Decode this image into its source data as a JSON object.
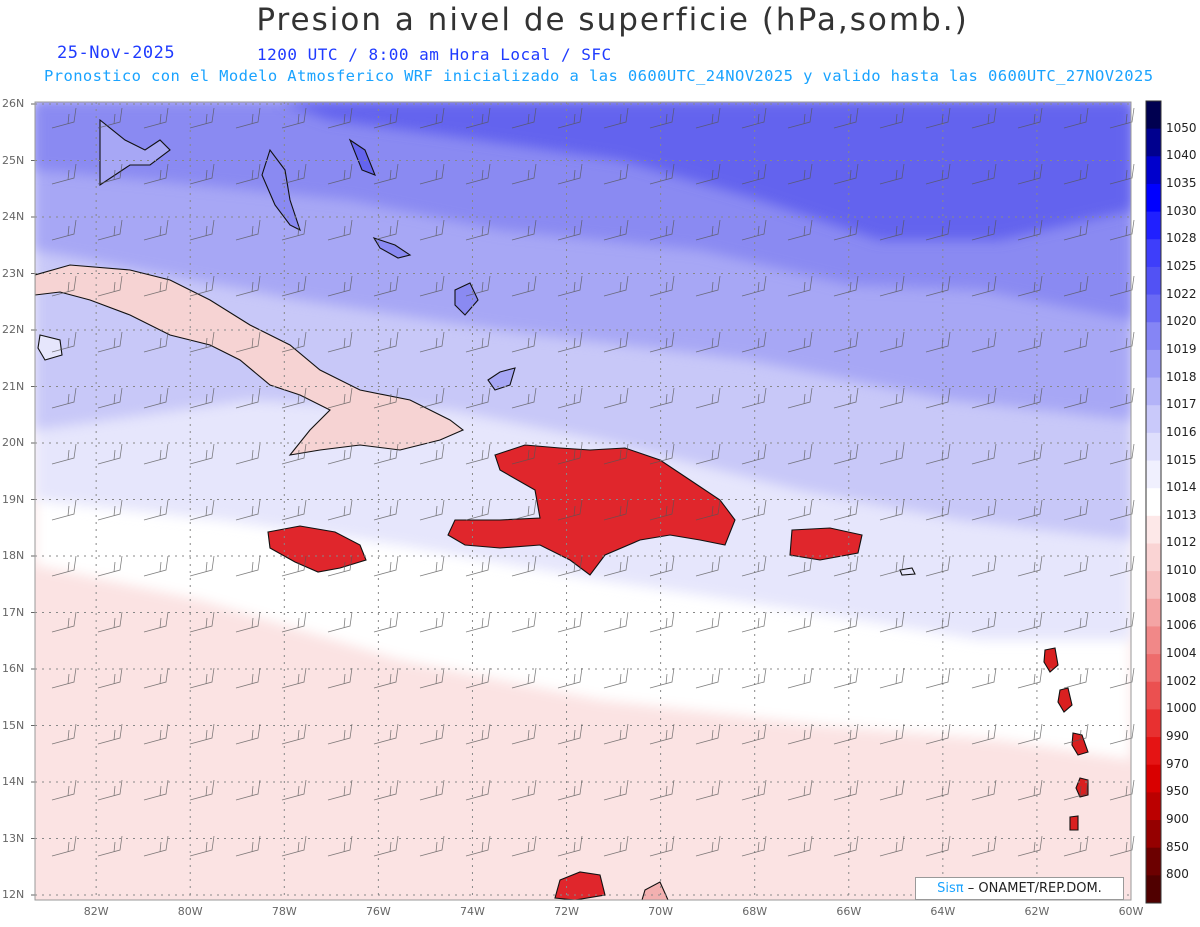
{
  "header": {
    "title": "Presion a nivel de superficie (hPa,somb.)",
    "date": "25-Nov-2025",
    "time_line": "1200 UTC / 8:00 am Hora Local / SFC",
    "forecast_line": "Pronostico con el Modelo Atmosferico WRF inicializado a las 0600UTC_24NOV2025 y valido hasta las  0600UTC_27NOV2025"
  },
  "axes": {
    "lat_labels": [
      "26N",
      "25N",
      "24N",
      "23N",
      "22N",
      "21N",
      "20N",
      "19N",
      "18N",
      "17N",
      "16N",
      "15N",
      "14N",
      "13N",
      "12N"
    ],
    "lon_labels": [
      "82W",
      "80W",
      "78W",
      "76W",
      "74W",
      "72W",
      "70W",
      "68W",
      "66W",
      "64W",
      "62W",
      "60W"
    ],
    "lat_range": [
      12,
      26
    ],
    "lon_range": [
      -83.3,
      -60
    ]
  },
  "colorbar": {
    "levels": [
      "1050",
      "1040",
      "1035",
      "1030",
      "1028",
      "1025",
      "1022",
      "1020",
      "1019",
      "1018",
      "1017",
      "1016",
      "1015",
      "1014",
      "1013",
      "1012",
      "1010",
      "1008",
      "1006",
      "1004",
      "1002",
      "1000",
      "990",
      "970",
      "950",
      "900",
      "850",
      "800"
    ],
    "colors": [
      "#000050",
      "#00008e",
      "#0000cc",
      "#0000ff",
      "#2020ff",
      "#3e3efa",
      "#5252f4",
      "#6a6af4",
      "#8585f5",
      "#9c9cf6",
      "#b3b3f8",
      "#c9c9fa",
      "#dedefc",
      "#f0f0fe",
      "#ffffff",
      "#fde8e8",
      "#fad4d4",
      "#f7c0c0",
      "#f4a4a4",
      "#f18888",
      "#ee6c6c",
      "#eb5050",
      "#e83030",
      "#e51414",
      "#d90000",
      "#bb0000",
      "#950000",
      "#6c0000"
    ]
  },
  "legend": {
    "credit_prefix": "Sisπ",
    "credit_text": "– ONAMET/REP.DOM."
  },
  "regions": {
    "high_pressure": "#6e6ef2",
    "mid_pressure": "#a9a9f6",
    "neutral": "#ffffff",
    "low_pressure": "#fbe2e2",
    "island_low": "#e21f1f"
  }
}
